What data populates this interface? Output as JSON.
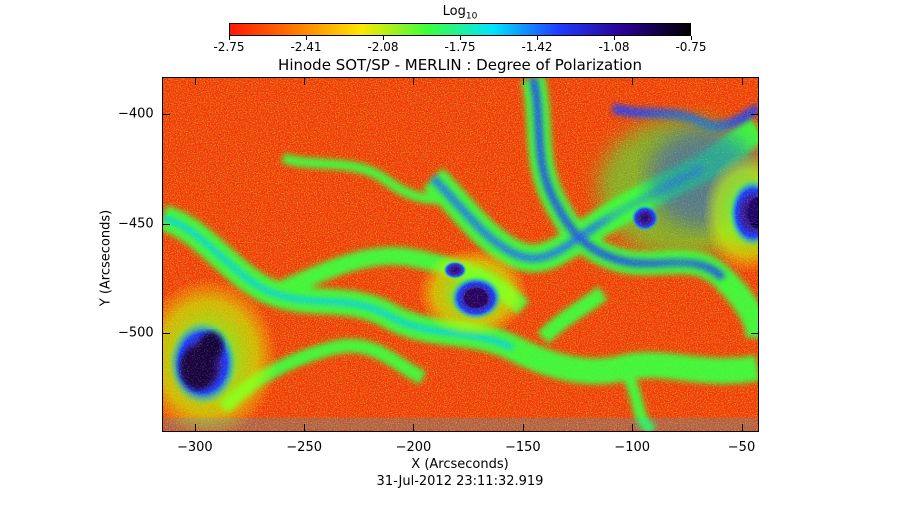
{
  "colorbar": {
    "title": "Log",
    "title_sub": "10",
    "ticks": [
      "-2.75",
      "-2.41",
      "-2.08",
      "-1.75",
      "-1.42",
      "-1.08",
      "-0.75"
    ],
    "colors": [
      "#ff1a00",
      "#ff7a00",
      "#ffe800",
      "#3cff3c",
      "#00e5ff",
      "#1f3cff",
      "#2a0090",
      "#000000"
    ]
  },
  "plot": {
    "title": "Hinode SOT/SP - MERLIN : Degree of Polarization",
    "xlabel": "X (Arcseconds)",
    "ylabel": "Y (Arcseconds)",
    "x_ticks": [
      "-300",
      "-250",
      "-200",
      "-150",
      "-100",
      "-50"
    ],
    "y_ticks": [
      "-400",
      "-450",
      "-500"
    ],
    "x_range": [
      -315,
      -42
    ],
    "y_range": [
      -545,
      -383
    ],
    "timestamp": "31-Jul-2012 23:11:32.919"
  }
}
